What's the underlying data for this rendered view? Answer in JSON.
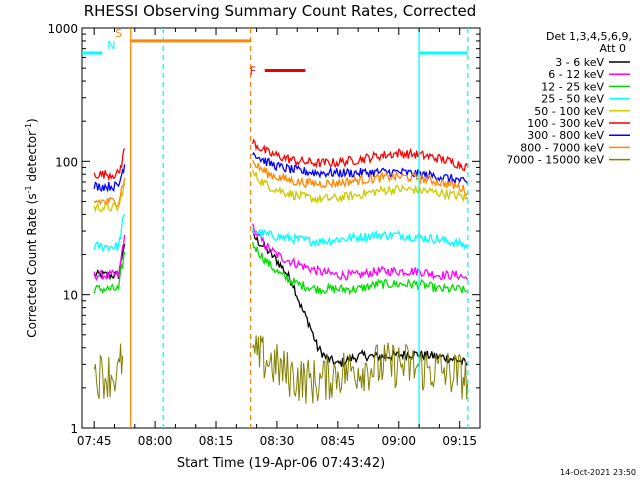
{
  "chart_data": {
    "type": "line",
    "title": "RHESSI Observing Summary Count Rates, Corrected",
    "xlabel": "Start Time (19-Apr-06 07:43:42)",
    "ylabel_main": "Corrected Count Rate (s",
    "ylabel_sup1": "-1",
    "ylabel_mid": " detector",
    "ylabel_sup2": "-1",
    "ylabel_end": ")",
    "yscale": "log",
    "ylim": [
      1,
      1000
    ],
    "xlim_minutes": [
      -3,
      95
    ],
    "x_ticks": [
      {
        "label": "07:45",
        "min": 0
      },
      {
        "label": "08:00",
        "min": 15
      },
      {
        "label": "08:15",
        "min": 30
      },
      {
        "label": "08:30",
        "min": 45
      },
      {
        "label": "08:45",
        "min": 60
      },
      {
        "label": "09:00",
        "min": 75
      },
      {
        "label": "09:15",
        "min": 90
      }
    ],
    "y_ticks": [
      {
        "label": "1",
        "value": 1
      },
      {
        "label": "10",
        "value": 10
      },
      {
        "label": "100",
        "value": 100
      },
      {
        "label": "1000",
        "value": 1000
      }
    ],
    "legend_header": [
      "Det 1,3,4,5,6,9,",
      "Att 0"
    ],
    "legend_position": "top-right",
    "series": [
      {
        "name": "3 - 6 keV",
        "color": "#000000",
        "values": [
          [
            0,
            14
          ],
          [
            6,
            14
          ],
          [
            6.5,
            17
          ],
          [
            7,
            21
          ],
          [
            7.5,
            24
          ],
          [
            8.5,
            null
          ],
          [
            38.5,
            null
          ],
          [
            39,
            28
          ],
          [
            41,
            24
          ],
          [
            43,
            21
          ],
          [
            45,
            18
          ],
          [
            47,
            15
          ],
          [
            49,
            12
          ],
          [
            51,
            8
          ],
          [
            53,
            6
          ],
          [
            55,
            4
          ],
          [
            57,
            3.4
          ],
          [
            60,
            3.0
          ],
          [
            63,
            3.3
          ],
          [
            66,
            3.5
          ],
          [
            70,
            3.4
          ],
          [
            74,
            3.5
          ],
          [
            78,
            3.6
          ],
          [
            82,
            3.5
          ],
          [
            86,
            3.4
          ],
          [
            90,
            3.2
          ],
          [
            92,
            3.0
          ]
        ]
      },
      {
        "name": "6 - 12 keV",
        "color": "#ff00ff",
        "values": [
          [
            0,
            14
          ],
          [
            6,
            14
          ],
          [
            6.5,
            17
          ],
          [
            7,
            23
          ],
          [
            7.5,
            28
          ],
          [
            8.5,
            null
          ],
          [
            38.5,
            null
          ],
          [
            39,
            32
          ],
          [
            41,
            26
          ],
          [
            43,
            22
          ],
          [
            46,
            19
          ],
          [
            50,
            17
          ],
          [
            55,
            15
          ],
          [
            60,
            14
          ],
          [
            65,
            14
          ],
          [
            70,
            15
          ],
          [
            75,
            15
          ],
          [
            80,
            15
          ],
          [
            85,
            14
          ],
          [
            90,
            14
          ],
          [
            92,
            13
          ]
        ]
      },
      {
        "name": "12 - 25 keV",
        "color": "#00dd00",
        "values": [
          [
            0,
            11
          ],
          [
            6,
            11
          ],
          [
            6.5,
            14
          ],
          [
            7,
            17
          ],
          [
            7.5,
            21
          ],
          [
            8.5,
            null
          ],
          [
            38.5,
            null
          ],
          [
            39,
            24
          ],
          [
            41,
            20
          ],
          [
            43,
            17
          ],
          [
            46,
            14
          ],
          [
            50,
            12
          ],
          [
            55,
            11
          ],
          [
            60,
            11
          ],
          [
            65,
            11
          ],
          [
            70,
            12
          ],
          [
            75,
            12
          ],
          [
            80,
            12
          ],
          [
            85,
            11
          ],
          [
            90,
            11
          ],
          [
            92,
            10.5
          ]
        ]
      },
      {
        "name": "25 - 50 keV",
        "color": "#00ffff",
        "values": [
          [
            0,
            23
          ],
          [
            6,
            23
          ],
          [
            6.5,
            28
          ],
          [
            7,
            35
          ],
          [
            7.5,
            40
          ],
          [
            8.5,
            null
          ],
          [
            38.5,
            null
          ],
          [
            39,
            30
          ],
          [
            41,
            29
          ],
          [
            43,
            28
          ],
          [
            46,
            27
          ],
          [
            50,
            26
          ],
          [
            55,
            25
          ],
          [
            60,
            26
          ],
          [
            65,
            27
          ],
          [
            70,
            28
          ],
          [
            75,
            28
          ],
          [
            80,
            27
          ],
          [
            85,
            26
          ],
          [
            90,
            24
          ],
          [
            92,
            23
          ]
        ]
      },
      {
        "name": "50 - 100 keV",
        "color": "#cccc00",
        "values": [
          [
            0,
            45
          ],
          [
            6,
            45
          ],
          [
            6.5,
            52
          ],
          [
            7,
            60
          ],
          [
            7.5,
            68
          ],
          [
            8.5,
            null
          ],
          [
            38.5,
            null
          ],
          [
            39,
            82
          ],
          [
            41,
            72
          ],
          [
            43,
            65
          ],
          [
            46,
            60
          ],
          [
            50,
            55
          ],
          [
            55,
            52
          ],
          [
            60,
            53
          ],
          [
            65,
            56
          ],
          [
            70,
            60
          ],
          [
            75,
            62
          ],
          [
            80,
            61
          ],
          [
            85,
            58
          ],
          [
            90,
            55
          ],
          [
            92,
            52
          ]
        ]
      },
      {
        "name": "100 - 300 keV",
        "color": "#ff0000",
        "values": [
          [
            0,
            80
          ],
          [
            6,
            80
          ],
          [
            6.5,
            90
          ],
          [
            7,
            105
          ],
          [
            7.5,
            125
          ],
          [
            8.5,
            null
          ],
          [
            38.5,
            null
          ],
          [
            39,
            140
          ],
          [
            41,
            125
          ],
          [
            43,
            115
          ],
          [
            46,
            108
          ],
          [
            50,
            100
          ],
          [
            55,
            97
          ],
          [
            60,
            98
          ],
          [
            65,
            103
          ],
          [
            70,
            110
          ],
          [
            75,
            115
          ],
          [
            80,
            112
          ],
          [
            85,
            105
          ],
          [
            90,
            95
          ],
          [
            92,
            90
          ]
        ]
      },
      {
        "name": "300 - 800 keV",
        "color": "#0000ff",
        "values": [
          [
            0,
            65
          ],
          [
            6,
            65
          ],
          [
            6.5,
            75
          ],
          [
            7,
            85
          ],
          [
            7.5,
            95
          ],
          [
            8.5,
            null
          ],
          [
            38.5,
            null
          ],
          [
            39,
            118
          ],
          [
            41,
            105
          ],
          [
            43,
            97
          ],
          [
            46,
            90
          ],
          [
            50,
            85
          ],
          [
            55,
            82
          ],
          [
            60,
            82
          ],
          [
            65,
            82
          ],
          [
            70,
            83
          ],
          [
            75,
            83
          ],
          [
            80,
            80
          ],
          [
            85,
            77
          ],
          [
            90,
            72
          ],
          [
            92,
            67
          ]
        ]
      },
      {
        "name": "800 - 7000 keV",
        "color": "#ff8800",
        "values": [
          [
            0,
            50
          ],
          [
            6,
            50
          ],
          [
            6.5,
            58
          ],
          [
            7,
            67
          ],
          [
            7.5,
            75
          ],
          [
            8.5,
            null
          ],
          [
            38.5,
            null
          ],
          [
            39,
            98
          ],
          [
            41,
            88
          ],
          [
            43,
            80
          ],
          [
            46,
            75
          ],
          [
            50,
            70
          ],
          [
            55,
            68
          ],
          [
            60,
            69
          ],
          [
            65,
            72
          ],
          [
            70,
            75
          ],
          [
            75,
            77
          ],
          [
            80,
            75
          ],
          [
            85,
            70
          ],
          [
            90,
            64
          ],
          [
            92,
            59
          ]
        ]
      },
      {
        "name": "7000 - 15000 keV",
        "color": "#808000",
        "values": [
          [
            0,
            2.5
          ],
          [
            6,
            2.5
          ],
          [
            6.5,
            3
          ],
          [
            7,
            3.5
          ],
          [
            8.5,
            null
          ],
          [
            38.5,
            null
          ],
          [
            39,
            3.5
          ],
          [
            43,
            3.2
          ],
          [
            47,
            2.6
          ],
          [
            51,
            2.3
          ],
          [
            55,
            2.2
          ],
          [
            60,
            2.6
          ],
          [
            65,
            2.8
          ],
          [
            70,
            2.9
          ],
          [
            75,
            3.0
          ],
          [
            80,
            2.8
          ],
          [
            85,
            2.7
          ],
          [
            90,
            2.5
          ],
          [
            92,
            2.3
          ]
        ]
      }
    ],
    "markers": [
      {
        "label": "S",
        "start_min": 9.0,
        "end_min": 38.5,
        "value": 800,
        "color": "#ff8800"
      },
      {
        "label": "N",
        "start_min": -3,
        "end_min": 2.0,
        "value": 650,
        "color": "#00ffff"
      },
      {
        "label": "N",
        "start_min": 80.0,
        "end_min": 92,
        "value": 650,
        "color": "#00ffff"
      },
      {
        "label": "F",
        "start_min": 42.0,
        "end_min": 52.0,
        "value": 480,
        "color": "#ee0000"
      }
    ],
    "vertical_lines": [
      {
        "min": 9.0,
        "color": "#ff8800",
        "style": "solid"
      },
      {
        "min": 17.0,
        "color": "#00ffff",
        "style": "dashed"
      },
      {
        "min": 38.5,
        "color": "#ff8800",
        "style": "dashed"
      },
      {
        "min": 80.0,
        "color": "#00ffff",
        "style": "solid"
      },
      {
        "min": 92.0,
        "color": "#00ffff",
        "style": "dashed"
      }
    ]
  },
  "footer": {
    "timestamp": "14-Oct-2021 23:50"
  }
}
